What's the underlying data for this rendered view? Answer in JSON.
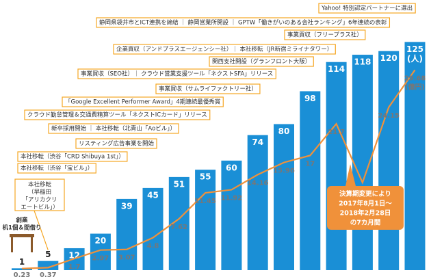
{
  "chart_data": {
    "type": "bar",
    "ylim": [
      0,
      133
    ],
    "y2lim": [
      0,
      36
    ],
    "series": [
      {
        "color": "#1a8fd6",
        "values": [
          1,
          5,
          12,
          20,
          39,
          45,
          51,
          55,
          60,
          74,
          80,
          98,
          114,
          118,
          120,
          125
        ]
      },
      {
        "color": "#f0913a",
        "axis": "y2",
        "values": [
          0.23,
          0.37,
          1.7,
          2.97,
          3.07,
          4.8,
          7.62,
          11.45,
          11.92,
          14.16,
          15.96,
          17,
          21.7,
          12.98,
          24.15,
          29.68
        ]
      }
    ],
    "bar_unit": "(人)",
    "line_unit": "(億円)",
    "annotations": [
      {
        "text": "Yahoo! 特別認定パートナーに選出"
      },
      {
        "text": "静岡県袋井市とICT連携を締結 ｜ 静岡営業所開設 ｜ GPTW「働きがいのある会社ランキング」6年連続の表彰"
      },
      {
        "text": "事業買収（フリープラス社）"
      },
      {
        "text": "企業買収（アンドプラスエージェンシー社）｜ 本社移転（JR新宿ミライナタワー）"
      },
      {
        "text": "関西支社開設（グランフロント大阪）"
      },
      {
        "text": "事業買収（SEO社）｜ クラウド営業支援ツール「ネクストSFA」リリース"
      },
      {
        "text": "事業買収（サムライファクトリー社）"
      },
      {
        "text": "「Google Excellent Performer Award」4期連続最優秀賞"
      },
      {
        "text": "クラウド勤怠管理＆交通費精算ツール「ネクストICカード」リリース"
      },
      {
        "text": "新卒採用開始 ｜ 本社移転（北青山「Aoビル」）"
      },
      {
        "text": "リスティング広告事業を開始"
      },
      {
        "text": "本社移転（渋谷「CRD Shibuya 1st」）"
      },
      {
        "text": "本社移転（渋谷「宝ビル」）"
      }
    ],
    "office_note": [
      "本社移転",
      "（早稲田",
      "「アリカクリ",
      "エートビル」）"
    ],
    "founding_note": [
      "創業",
      "机1個＆間借り"
    ],
    "period_note": [
      "決算期変更により",
      "2017年8月1日～",
      "2018年2月28日",
      "の7カ月間"
    ]
  }
}
